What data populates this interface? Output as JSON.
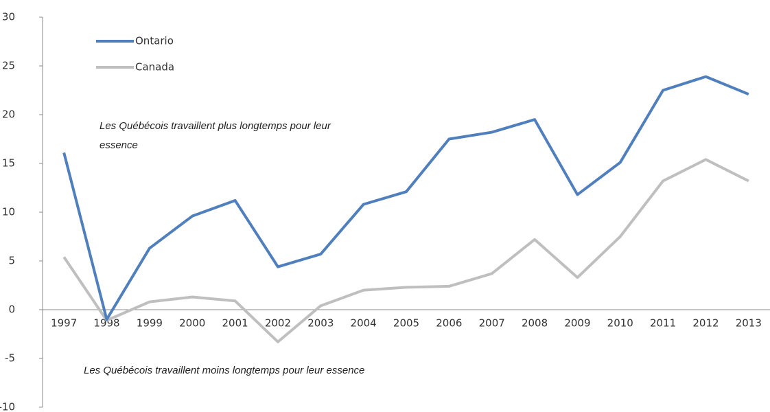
{
  "chart_data": {
    "type": "line",
    "categories": [
      "1997",
      "1998",
      "1999",
      "2000",
      "2001",
      "2002",
      "2003",
      "2004",
      "2005",
      "2006",
      "2007",
      "2008",
      "2009",
      "2010",
      "2011",
      "2012",
      "2013"
    ],
    "series": [
      {
        "name": "Ontario",
        "color": "#4f7fbd",
        "values": [
          16.1,
          -1,
          6.3,
          9.6,
          11.2,
          4.4,
          5.7,
          10.8,
          12.1,
          17.5,
          18.2,
          19.5,
          11.8,
          15.1,
          22.5,
          23.9,
          22.1
        ]
      },
      {
        "name": "Canada",
        "color": "#bfbfbf",
        "values": [
          5.4,
          -1.1,
          0.8,
          1.3,
          0.9,
          -3.3,
          0.4,
          2.0,
          2.3,
          2.4,
          3.7,
          7.2,
          3.3,
          7.5,
          13.2,
          15.4,
          13.2
        ]
      }
    ],
    "ylim": [
      -10,
      30
    ],
    "yticks": [
      -10,
      -5,
      0,
      5,
      10,
      15,
      20,
      25,
      30
    ],
    "grid": false,
    "legend": "top-left",
    "annotations": [
      "Les Québécois travaillent plus longtemps pour leur",
      "essence",
      "Les Québécois travaillent moins longtemps pour leur essence"
    ]
  }
}
